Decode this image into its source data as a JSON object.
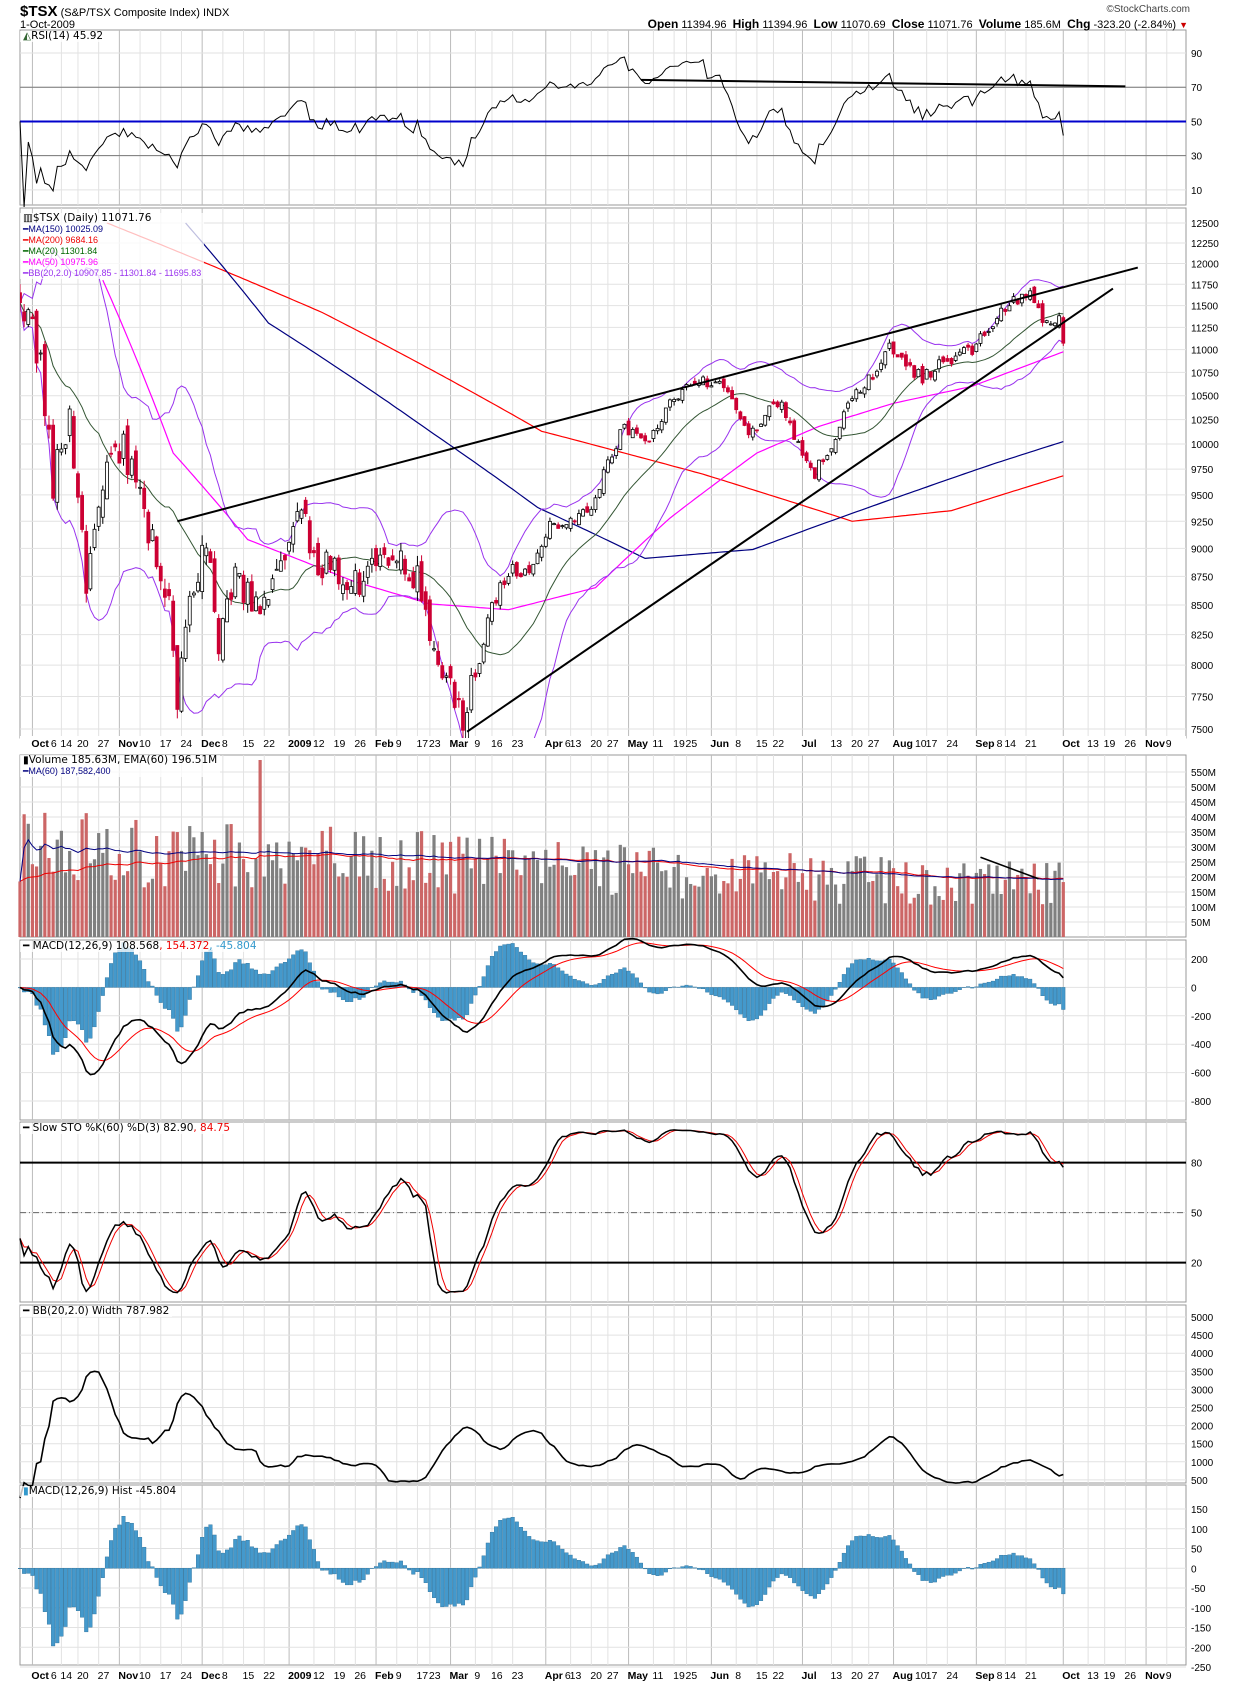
{
  "header": {
    "symbol": "$TSX",
    "name": "(S&P/TSX Composite Index)",
    "exchange": "INDX",
    "date": "1-Oct-2009",
    "copyright": "©StockCharts.com",
    "quote": [
      {
        "label": "Open",
        "value": "11394.96"
      },
      {
        "label": "High",
        "value": "11394.96"
      },
      {
        "label": "Low",
        "value": "11070.69"
      },
      {
        "label": "Close",
        "value": "11071.76"
      },
      {
        "label": "Volume",
        "value": "185.6M"
      },
      {
        "label": "Chg",
        "value": "-323.20 (-2.84%)"
      }
    ],
    "change_direction": "down"
  },
  "legends": {
    "rsi": "RSI(14) 45.92",
    "price": "$TSX (Daily) 11071.76",
    "ma150": "MA(150) 10025.09",
    "ma200": "MA(200) 9684.16",
    "ma20": "MA(20) 11301.84",
    "ma50": "MA(50) 10975.96",
    "bb": "BB(20,2.0) 10907.85 - 11301.84 - 11695.83",
    "volume": "Volume 185.63M, EMA(60) 196.51M",
    "vol_ma": "MA(60) 187,582,400",
    "macd_a": "MACD(12,26,9) 108.568",
    "macd_b": ", 154.372",
    "macd_c": ", -45.804",
    "sto_a": "Slow STO %K(60) %D(3) 82.90",
    "sto_b": ", 84.75",
    "bbw": "BB(20,2.0) Width 787.982",
    "hist": "MACD(12,26,9) Hist -45.804"
  },
  "colors": {
    "up": "#ffffff",
    "down": "#cc0033",
    "ma150": "#000080",
    "ma200": "#ff0000",
    "ma20": "#335533",
    "ma50": "#ff00ff",
    "bb": "#9933ee",
    "vol_up": "#808080",
    "vol_down": "#cc6666",
    "macd": "#000000",
    "signal": "#ff0000",
    "hist": "#4499cc",
    "rsi50": "#0000cc"
  },
  "chart_data": {
    "type": "candlestick",
    "title": "$TSX (S&P/TSX Composite Index) INDX daily",
    "x_axis": {
      "labels": [
        {
          "b": "Oct",
          "t": "6",
          "i": 3
        },
        {
          "t": "14",
          "i": 10
        },
        {
          "t": "20",
          "i": 14
        },
        {
          "t": "27",
          "i": 19
        },
        {
          "b": "Nov",
          "i": 24
        },
        {
          "t": "10",
          "i": 29
        },
        {
          "t": "17",
          "i": 34
        },
        {
          "t": "24",
          "i": 39
        },
        {
          "b": "Dec",
          "i": 44
        },
        {
          "t": "8",
          "i": 49
        },
        {
          "t": "15",
          "i": 54
        },
        {
          "t": "22",
          "i": 59
        },
        {
          "b": "2009",
          "i": 65
        },
        {
          "t": "12",
          "i": 71
        },
        {
          "t": "19",
          "i": 76
        },
        {
          "t": "26",
          "i": 81
        },
        {
          "b": "Feb",
          "i": 86
        },
        {
          "t": "9",
          "i": 91
        },
        {
          "t": "17",
          "i": 96
        },
        {
          "t": "23",
          "i": 99
        },
        {
          "b": "Mar",
          "i": 104
        },
        {
          "t": "9",
          "i": 110
        },
        {
          "t": "16",
          "i": 114
        },
        {
          "t": "23",
          "i": 119
        },
        {
          "b": "Apr",
          "t": "6",
          "i": 127
        },
        {
          "t": "13",
          "i": 133
        },
        {
          "t": "20",
          "i": 138
        },
        {
          "t": "27",
          "i": 142
        },
        {
          "b": "May",
          "i": 147
        },
        {
          "t": "11",
          "i": 153
        },
        {
          "t": "19",
          "i": 158
        },
        {
          "t": "25",
          "i": 161
        },
        {
          "b": "Jun",
          "i": 167
        },
        {
          "t": "8",
          "i": 173
        },
        {
          "t": "15",
          "i": 178
        },
        {
          "t": "22",
          "i": 182
        },
        {
          "b": "Jul",
          "i": 189
        },
        {
          "t": "13",
          "i": 196
        },
        {
          "t": "20",
          "i": 201
        },
        {
          "t": "27",
          "i": 205
        },
        {
          "b": "Aug",
          "t": "10",
          "i": 211
        },
        {
          "t": "17",
          "i": 219
        },
        {
          "t": "24",
          "i": 224
        },
        {
          "b": "Sep",
          "t": "8",
          "i": 231
        },
        {
          "t": "14",
          "i": 238
        },
        {
          "t": "21",
          "i": 243
        },
        {
          "b": "Oct",
          "i": 252
        },
        {
          "t": "13",
          "i": 258
        },
        {
          "t": "19",
          "i": 262
        },
        {
          "t": "26",
          "i": 267
        },
        {
          "b": "Nov",
          "i": 272
        },
        {
          "t": "9",
          "i": 277
        }
      ]
    },
    "price": {
      "scale": "log",
      "ylim": [
        7400,
        12600
      ],
      "ticks": [
        "12500",
        "12250",
        "12000",
        "11750",
        "11500",
        "11250",
        "11000",
        "10750",
        "10500",
        "10250",
        "10000",
        "9750",
        "9500",
        "9250",
        "9000",
        "8750",
        "8500",
        "8250",
        "8000",
        "7750",
        "7500"
      ],
      "close_keypoints": [
        [
          0,
          11700
        ],
        [
          5,
          10800
        ],
        [
          8,
          9600
        ],
        [
          12,
          10300
        ],
        [
          16,
          8700
        ],
        [
          20,
          9700
        ],
        [
          25,
          10000
        ],
        [
          30,
          9300
        ],
        [
          36,
          8500
        ],
        [
          38,
          7700
        ],
        [
          42,
          8700
        ],
        [
          45,
          9100
        ],
        [
          48,
          8100
        ],
        [
          52,
          8800
        ],
        [
          58,
          8400
        ],
        [
          64,
          8900
        ],
        [
          68,
          9300
        ],
        [
          72,
          8900
        ],
        [
          80,
          8700
        ],
        [
          86,
          8800
        ],
        [
          92,
          9000
        ],
        [
          96,
          8700
        ],
        [
          100,
          8100
        ],
        [
          104,
          7800
        ],
        [
          107,
          7600
        ],
        [
          110,
          7900
        ],
        [
          114,
          8500
        ],
        [
          118,
          8800
        ],
        [
          124,
          8800
        ],
        [
          128,
          9200
        ],
        [
          134,
          9300
        ],
        [
          138,
          9400
        ],
        [
          142,
          9800
        ],
        [
          146,
          10200
        ],
        [
          150,
          10000
        ],
        [
          154,
          10200
        ],
        [
          158,
          10500
        ],
        [
          163,
          10600
        ],
        [
          168,
          10700
        ],
        [
          172,
          10500
        ],
        [
          176,
          10100
        ],
        [
          180,
          10300
        ],
        [
          184,
          10450
        ],
        [
          188,
          10000
        ],
        [
          192,
          9700
        ],
        [
          196,
          10000
        ],
        [
          200,
          10400
        ],
        [
          206,
          10700
        ],
        [
          210,
          11000
        ],
        [
          214,
          10800
        ],
        [
          218,
          10700
        ],
        [
          224,
          10900
        ],
        [
          230,
          11000
        ],
        [
          234,
          11200
        ],
        [
          238,
          11500
        ],
        [
          244,
          11600
        ],
        [
          248,
          11300
        ],
        [
          251,
          11400
        ],
        [
          252,
          11071.76
        ]
      ],
      "ma150_keypoints": [
        [
          40,
          12500
        ],
        [
          60,
          11300
        ],
        [
          99,
          10130
        ],
        [
          125,
          9380
        ],
        [
          151,
          8910
        ],
        [
          177,
          8990
        ],
        [
          210,
          9450
        ],
        [
          235,
          9800
        ],
        [
          252,
          10025.09
        ]
      ],
      "ma200_keypoints": [
        [
          21,
          12500
        ],
        [
          73,
          11420
        ],
        [
          126,
          10130
        ],
        [
          165,
          9700
        ],
        [
          201,
          9250
        ],
        [
          225,
          9350
        ],
        [
          252,
          9684.16
        ]
      ],
      "ma50_keypoints": [
        [
          20,
          11800
        ],
        [
          37,
          9910
        ],
        [
          55,
          9080
        ],
        [
          81,
          8700
        ],
        [
          99,
          8510
        ],
        [
          118,
          8460
        ],
        [
          139,
          8650
        ],
        [
          157,
          9280
        ],
        [
          178,
          9910
        ],
        [
          193,
          10180
        ],
        [
          211,
          10420
        ],
        [
          230,
          10600
        ],
        [
          252,
          10975.96
        ]
      ],
      "trendlines": [
        [
          [
            38,
            9250
          ],
          [
            270,
            11950
          ]
        ],
        [
          [
            108,
            7480
          ],
          [
            264,
            11700
          ]
        ]
      ]
    },
    "rsi": {
      "period": 14,
      "ylim": [
        0,
        100
      ],
      "ticks": [
        "90",
        "70",
        "50",
        "30",
        "10"
      ],
      "levels": [
        70,
        50,
        30
      ],
      "trendline": [
        [
          150,
          74.3
        ],
        [
          267,
          70.5
        ]
      ]
    },
    "volume": {
      "unit": "M",
      "ticks": [
        "550M",
        "500M",
        "450M",
        "400M",
        "350M",
        "300M",
        "250M",
        "200M",
        "150M",
        "100M",
        "50M"
      ],
      "base_keypoints": [
        [
          0,
          320
        ],
        [
          60,
          280
        ],
        [
          110,
          260
        ],
        [
          160,
          230
        ],
        [
          200,
          200
        ],
        [
          252,
          190
        ]
      ],
      "spikes": [
        [
          58,
          590
        ]
      ],
      "trendline": [
        [
          232,
          266
        ],
        [
          246,
          194
        ]
      ]
    },
    "macd": {
      "params": [
        12,
        26,
        9
      ],
      "ticks": [
        "200",
        "0",
        "-200",
        "-400",
        "-600",
        "-800"
      ]
    },
    "sto": {
      "params": [
        60,
        3
      ],
      "ticks": [
        "80",
        "50",
        "20"
      ],
      "levels": [
        80,
        50,
        20
      ]
    },
    "bb_width": {
      "ticks": [
        "5000",
        "4500",
        "4000",
        "3500",
        "3000",
        "2500",
        "2000",
        "1500",
        "1000",
        "500"
      ]
    },
    "hist": {
      "ticks": [
        "150",
        "100",
        "50",
        "0",
        "-50",
        "-100",
        "-150",
        "-200",
        "-250"
      ]
    }
  }
}
